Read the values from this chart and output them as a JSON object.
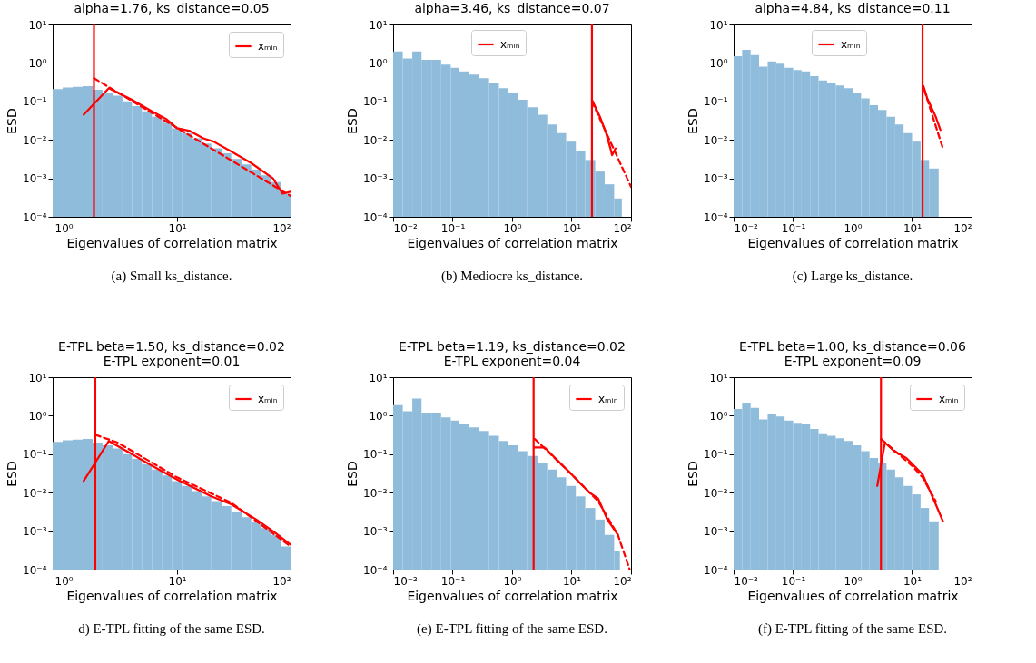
{
  "chart_data": [
    {
      "type": "histogram",
      "title": "alpha=1.76, ks_distance=0.05",
      "xlabel": "Eigenvalues of correlation matrix",
      "ylabel": "ESD",
      "log": "xy",
      "color": "#8fbcdb",
      "legend": "top right",
      "bins": [
        0.8,
        0.98,
        1.2,
        1.47,
        1.8,
        2.2,
        2.7,
        3.3,
        4.0,
        4.9,
        6.0,
        7.4,
        9.0,
        11,
        13.5,
        16.5,
        20,
        25,
        30,
        37,
        45,
        55,
        67,
        82,
        100
      ],
      "values": [
        0.21,
        0.23,
        0.24,
        0.25,
        0.2,
        0.17,
        0.14,
        0.1,
        0.075,
        0.055,
        0.04,
        0.028,
        0.02,
        0.015,
        0.011,
        0.008,
        0.006,
        0.0045,
        0.0032,
        0.0023,
        0.0017,
        0.0012,
        0.0008,
        0.0004
      ],
      "series": [
        {
          "type": "line",
          "color": "#ff0000",
          "x": [
            1.5,
            2.5,
            4,
            6,
            8,
            10,
            13,
            17,
            21,
            30,
            45,
            70,
            85,
            100
          ],
          "values": [
            0.045,
            0.22,
            0.11,
            0.055,
            0.035,
            0.02,
            0.017,
            0.011,
            0.009,
            0.005,
            0.0025,
            0.001,
            0.0004,
            0.00045
          ]
        },
        {
          "type": "line",
          "color": "#ff0000",
          "line_style": "dashed",
          "x": [
            1.85,
            100
          ],
          "values": [
            0.4,
            0.00035
          ]
        },
        {
          "type": "line",
          "name": "xₘᵢₙ",
          "color": "#ff0000",
          "x": [
            1.85,
            1.85
          ],
          "values": [
            0.0001,
            10
          ]
        }
      ],
      "xlim": [
        0.8,
        100
      ],
      "xticks": [
        {
          "value": 1,
          "label": "10⁰"
        },
        {
          "value": 10,
          "label": "10¹"
        },
        {
          "value": 100,
          "label": "10²"
        }
      ],
      "ylim": [
        0.0001,
        10
      ],
      "yticks": [
        {
          "value": 0.0001,
          "label": "10⁻⁴"
        },
        {
          "value": 0.001,
          "label": "10⁻³"
        },
        {
          "value": 0.01,
          "label": "10⁻²"
        },
        {
          "value": 0.1,
          "label": "10⁻¹"
        },
        {
          "value": 1,
          "label": "10⁰"
        },
        {
          "value": 10,
          "label": "10¹"
        }
      ],
      "annotations": [
        "(a) Small ks_distance."
      ]
    },
    {
      "type": "histogram",
      "title": "alpha=3.46, ks_distance=0.07",
      "xlabel": "Eigenvalues of correlation matrix",
      "ylabel": "ESD",
      "log": "xy",
      "color": "#8fbcdb",
      "legend": "top",
      "bins": [
        0.01,
        0.0145,
        0.021,
        0.03,
        0.044,
        0.064,
        0.093,
        0.13,
        0.19,
        0.28,
        0.41,
        0.6,
        0.87,
        1.26,
        1.8,
        2.7,
        3.9,
        5.6,
        8.1,
        11.8,
        17,
        25,
        36,
        52,
        70
      ],
      "values": [
        2,
        1.3,
        2,
        1.2,
        1.2,
        0.9,
        0.75,
        0.6,
        0.5,
        0.4,
        0.3,
        0.22,
        0.17,
        0.11,
        0.07,
        0.045,
        0.025,
        0.015,
        0.009,
        0.005,
        0.003,
        0.0015,
        0.0007,
        0.0003
      ],
      "series": [
        {
          "type": "line",
          "color": "#ff0000",
          "x": [
            22,
            30,
            38,
            45,
            48,
            55
          ],
          "values": [
            0.11,
            0.04,
            0.015,
            0.006,
            0.004,
            0.006
          ]
        },
        {
          "type": "line",
          "color": "#ff0000",
          "line_style": "dashed",
          "x": [
            22,
            100
          ],
          "values": [
            0.1,
            0.0006
          ]
        },
        {
          "type": "line",
          "name": "xₘᵢₙ",
          "color": "#ff0000",
          "x": [
            22,
            22
          ],
          "values": [
            0.0001,
            10
          ]
        }
      ],
      "xlim": [
        0.01,
        100
      ],
      "xticks": [
        {
          "value": 0.01,
          "label": "10⁻²"
        },
        {
          "value": 0.1,
          "label": "10⁻¹"
        },
        {
          "value": 1,
          "label": "10⁰"
        },
        {
          "value": 10,
          "label": "10¹"
        },
        {
          "value": 100,
          "label": "10²"
        }
      ],
      "ylim": [
        0.0001,
        10
      ],
      "yticks": [
        {
          "value": 0.0001,
          "label": "10⁻⁴"
        },
        {
          "value": 0.001,
          "label": "10⁻³"
        },
        {
          "value": 0.01,
          "label": "10⁻²"
        },
        {
          "value": 0.1,
          "label": "10⁻¹"
        },
        {
          "value": 1,
          "label": "10⁰"
        },
        {
          "value": 10,
          "label": "10¹"
        }
      ],
      "annotations": [
        "(b) Mediocre ks_distance."
      ]
    },
    {
      "type": "histogram",
      "title": "alpha=4.84, ks_distance=0.11",
      "xlabel": "Eigenvalues of correlation matrix",
      "ylabel": "ESD",
      "log": "xy",
      "color": "#8fbcdb",
      "legend": "top",
      "bins": [
        0.01,
        0.0139,
        0.0193,
        0.0268,
        0.0373,
        0.052,
        0.072,
        0.1,
        0.139,
        0.193,
        0.268,
        0.373,
        0.52,
        0.72,
        1.0,
        1.39,
        1.93,
        2.68,
        3.73,
        5.2,
        7.2,
        10,
        13.9,
        19.3,
        28
      ],
      "values": [
        1.5,
        2.2,
        1.6,
        0.8,
        1.1,
        0.95,
        0.75,
        0.65,
        0.6,
        0.45,
        0.35,
        0.3,
        0.26,
        0.22,
        0.17,
        0.12,
        0.08,
        0.06,
        0.04,
        0.025,
        0.015,
        0.009,
        0.003,
        0.0018
      ],
      "series": [
        {
          "type": "line",
          "color": "#ff0000",
          "x": [
            15.5,
            18,
            25,
            30
          ],
          "values": [
            0.25,
            0.12,
            0.04,
            0.018
          ]
        },
        {
          "type": "line",
          "color": "#ff0000",
          "line_style": "dashed",
          "x": [
            16,
            33
          ],
          "values": [
            0.2,
            0.006
          ]
        },
        {
          "type": "line",
          "name": "xₘᵢₙ",
          "color": "#ff0000",
          "x": [
            15,
            15
          ],
          "values": [
            0.0001,
            10
          ]
        }
      ],
      "xlim": [
        0.01,
        100
      ],
      "xticks": [
        {
          "value": 0.01,
          "label": "10⁻²"
        },
        {
          "value": 0.1,
          "label": "10⁻¹"
        },
        {
          "value": 1,
          "label": "10⁰"
        },
        {
          "value": 10,
          "label": "10¹"
        },
        {
          "value": 100,
          "label": "10²"
        }
      ],
      "ylim": [
        0.0001,
        10
      ],
      "yticks": [
        {
          "value": 0.0001,
          "label": "10⁻⁴"
        },
        {
          "value": 0.001,
          "label": "10⁻³"
        },
        {
          "value": 0.01,
          "label": "10⁻²"
        },
        {
          "value": 0.1,
          "label": "10⁻¹"
        },
        {
          "value": 1,
          "label": "10⁰"
        },
        {
          "value": 10,
          "label": "10¹"
        }
      ],
      "annotations": [
        "(c) Large ks_distance."
      ]
    },
    {
      "type": "histogram",
      "title": "E-TPL beta=1.50, ks_distance=0.02",
      "subtitle": "E-TPL exponent=0.01",
      "xlabel": "Eigenvalues of correlation matrix",
      "ylabel": "ESD",
      "log": "xy",
      "color": "#8fbcdb",
      "legend": "top right",
      "bins": [
        0.8,
        0.98,
        1.2,
        1.47,
        1.8,
        2.2,
        2.7,
        3.3,
        4.0,
        4.9,
        6.0,
        7.4,
        9.0,
        11,
        13.5,
        16.5,
        20,
        25,
        30,
        37,
        45,
        55,
        67,
        82,
        100
      ],
      "values": [
        0.21,
        0.23,
        0.24,
        0.25,
        0.2,
        0.17,
        0.14,
        0.1,
        0.075,
        0.055,
        0.04,
        0.028,
        0.02,
        0.015,
        0.011,
        0.008,
        0.006,
        0.0045,
        0.0032,
        0.0023,
        0.0017,
        0.0012,
        0.0008,
        0.0004
      ],
      "series": [
        {
          "type": "line",
          "color": "#ff0000",
          "x": [
            1.5,
            2.5,
            4,
            6,
            10,
            20,
            30,
            50,
            70,
            100
          ],
          "values": [
            0.02,
            0.22,
            0.1,
            0.05,
            0.022,
            0.008,
            0.005,
            0.002,
            0.001,
            0.00045
          ]
        },
        {
          "type": "line",
          "color": "#ff0000",
          "line_style": "dashed",
          "x": [
            1.9,
            3,
            10,
            30,
            100
          ],
          "values": [
            0.32,
            0.2,
            0.025,
            0.0055,
            0.0004
          ]
        },
        {
          "type": "line",
          "name": "xₘᵢₙ",
          "color": "#ff0000",
          "x": [
            1.9,
            1.9
          ],
          "values": [
            0.0001,
            10
          ]
        }
      ],
      "xlim": [
        0.8,
        100
      ],
      "xticks": [
        {
          "value": 1,
          "label": "10⁰"
        },
        {
          "value": 10,
          "label": "10¹"
        },
        {
          "value": 100,
          "label": "10²"
        }
      ],
      "ylim": [
        0.0001,
        10
      ],
      "yticks": [
        {
          "value": 0.0001,
          "label": "10⁻⁴"
        },
        {
          "value": 0.001,
          "label": "10⁻³"
        },
        {
          "value": 0.01,
          "label": "10⁻²"
        },
        {
          "value": 0.1,
          "label": "10⁻¹"
        },
        {
          "value": 1,
          "label": "10⁰"
        },
        {
          "value": 10,
          "label": "10¹"
        }
      ],
      "annotations": [
        "d) E-TPL fitting of the same ESD."
      ]
    },
    {
      "type": "histogram",
      "title": "E-TPL beta=1.19, ks_distance=0.02",
      "subtitle": "E-TPL exponent=0.04",
      "xlabel": "Eigenvalues of correlation matrix",
      "ylabel": "ESD",
      "log": "xy",
      "color": "#8fbcdb",
      "legend": "top right",
      "bins": [
        0.01,
        0.0145,
        0.021,
        0.03,
        0.044,
        0.064,
        0.093,
        0.13,
        0.19,
        0.28,
        0.41,
        0.6,
        0.87,
        1.26,
        1.8,
        2.7,
        3.9,
        5.6,
        8.1,
        11.8,
        17,
        25,
        36,
        52,
        65
      ],
      "values": [
        2,
        1.3,
        2.8,
        1.2,
        1.2,
        0.9,
        0.75,
        0.6,
        0.5,
        0.4,
        0.3,
        0.22,
        0.17,
        0.12,
        0.09,
        0.06,
        0.04,
        0.025,
        0.015,
        0.008,
        0.004,
        0.002,
        0.0008,
        0.0003
      ],
      "series": [
        {
          "type": "line",
          "color": "#ff0000",
          "x": [
            2.4,
            3.5,
            10,
            20,
            28,
            40,
            60
          ],
          "values": [
            0.15,
            0.15,
            0.03,
            0.01,
            0.007,
            0.002,
            0.0008
          ]
        },
        {
          "type": "line",
          "color": "#ff0000",
          "line_style": "dashed",
          "x": [
            2.4,
            10,
            28,
            60,
            95
          ],
          "values": [
            0.25,
            0.03,
            0.006,
            0.0008,
            0.0001
          ]
        },
        {
          "type": "line",
          "name": "xₘᵢₙ",
          "color": "#ff0000",
          "x": [
            2.3,
            2.3
          ],
          "values": [
            0.0001,
            10
          ]
        }
      ],
      "xlim": [
        0.01,
        100
      ],
      "xticks": [
        {
          "value": 0.01,
          "label": "10⁻²"
        },
        {
          "value": 0.1,
          "label": "10⁻¹"
        },
        {
          "value": 1,
          "label": "10⁰"
        },
        {
          "value": 10,
          "label": "10¹"
        },
        {
          "value": 100,
          "label": "10²"
        }
      ],
      "ylim": [
        0.0001,
        10
      ],
      "yticks": [
        {
          "value": 0.0001,
          "label": "10⁻⁴"
        },
        {
          "value": 0.001,
          "label": "10⁻³"
        },
        {
          "value": 0.01,
          "label": "10⁻²"
        },
        {
          "value": 0.1,
          "label": "10⁻¹"
        },
        {
          "value": 1,
          "label": "10⁰"
        },
        {
          "value": 10,
          "label": "10¹"
        }
      ],
      "annotations": [
        "(e) E-TPL fitting of the same ESD."
      ]
    },
    {
      "type": "histogram",
      "title": "E-TPL beta=1.00, ks_distance=0.06",
      "subtitle": "E-TPL exponent=0.09",
      "xlabel": "Eigenvalues of correlation matrix",
      "ylabel": "ESD",
      "log": "xy",
      "color": "#8fbcdb",
      "legend": "top right",
      "bins": [
        0.01,
        0.0139,
        0.0193,
        0.0268,
        0.0373,
        0.052,
        0.072,
        0.1,
        0.139,
        0.193,
        0.268,
        0.373,
        0.52,
        0.72,
        1.0,
        1.39,
        1.93,
        2.68,
        3.73,
        5.2,
        7.2,
        10,
        13.9,
        19.3,
        28
      ],
      "values": [
        1.5,
        2.2,
        1.6,
        0.8,
        1.1,
        0.95,
        0.75,
        0.65,
        0.6,
        0.45,
        0.35,
        0.3,
        0.26,
        0.22,
        0.17,
        0.12,
        0.08,
        0.06,
        0.04,
        0.025,
        0.015,
        0.009,
        0.004,
        0.0018
      ],
      "series": [
        {
          "type": "line",
          "color": "#ff0000",
          "x": [
            2.6,
            3.5,
            5,
            8,
            15,
            25,
            33
          ],
          "values": [
            0.015,
            0.2,
            0.12,
            0.08,
            0.03,
            0.005,
            0.0018
          ]
        },
        {
          "type": "line",
          "color": "#ff0000",
          "line_style": "dashed",
          "x": [
            3,
            10,
            15,
            25
          ],
          "values": [
            0.25,
            0.05,
            0.025,
            0.006
          ]
        },
        {
          "type": "line",
          "name": "xₘᵢₙ",
          "color": "#ff0000",
          "x": [
            3,
            3
          ],
          "values": [
            0.0001,
            10
          ]
        }
      ],
      "xlim": [
        0.01,
        100
      ],
      "xticks": [
        {
          "value": 0.01,
          "label": "10⁻²"
        },
        {
          "value": 0.1,
          "label": "10⁻¹"
        },
        {
          "value": 1,
          "label": "10⁰"
        },
        {
          "value": 10,
          "label": "10¹"
        },
        {
          "value": 100,
          "label": "10²"
        }
      ],
      "ylim": [
        0.0001,
        10
      ],
      "yticks": [
        {
          "value": 0.0001,
          "label": "10⁻⁴"
        },
        {
          "value": 0.001,
          "label": "10⁻³"
        },
        {
          "value": 0.01,
          "label": "10⁻²"
        },
        {
          "value": 0.1,
          "label": "10⁻¹"
        },
        {
          "value": 1,
          "label": "10⁰"
        },
        {
          "value": 10,
          "label": "10¹"
        }
      ],
      "annotations": [
        "(f) E-TPL fitting of the same ESD."
      ]
    }
  ]
}
